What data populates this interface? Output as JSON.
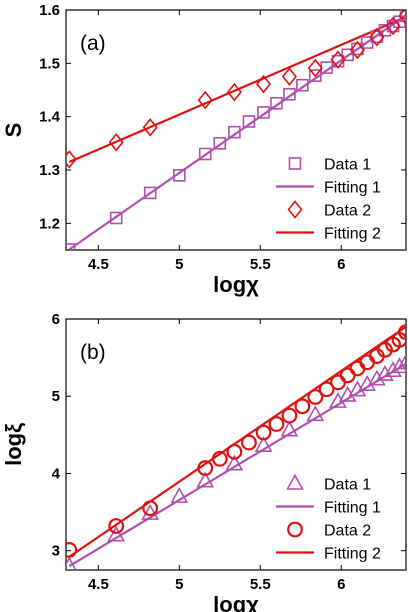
{
  "chart_data": [
    {
      "type": "scatter",
      "panel_label": "(a)",
      "xlabel": "logχ",
      "ylabel": "S",
      "xlim": [
        4.3,
        6.4
      ],
      "ylim": [
        1.15,
        1.6
      ],
      "x_ticks": [
        4.5,
        5,
        5.5,
        6
      ],
      "x_tick_labels": [
        "4.5",
        "5",
        "5.5",
        "6"
      ],
      "y_ticks": [
        1.2,
        1.3,
        1.4,
        1.5,
        1.6
      ],
      "y_tick_labels": [
        "1.2",
        "1.3",
        "1.4",
        "1.5",
        "1.6"
      ],
      "legend_position": "bottom-right",
      "series": [
        {
          "name": "Data 1",
          "kind": "marker",
          "marker": "square",
          "color": "#b04fb0",
          "x": [
            4.32,
            4.61,
            4.82,
            5.0,
            5.16,
            5.25,
            5.34,
            5.43,
            5.52,
            5.6,
            5.68,
            5.76,
            5.84,
            5.91,
            5.98,
            6.04,
            6.1,
            6.16,
            6.22,
            6.27,
            6.32,
            6.36,
            6.4
          ],
          "y": [
            1.151,
            1.21,
            1.257,
            1.29,
            1.33,
            1.35,
            1.371,
            1.391,
            1.408,
            1.425,
            1.442,
            1.459,
            1.477,
            1.492,
            1.504,
            1.516,
            1.527,
            1.539,
            1.55,
            1.562,
            1.57,
            1.578,
            1.589
          ]
        },
        {
          "name": "Fitting 1",
          "kind": "line",
          "color": "#b04fb0",
          "x": [
            4.32,
            6.4
          ],
          "y": [
            1.151,
            1.59
          ]
        },
        {
          "name": "Data 2",
          "kind": "marker",
          "marker": "diamond",
          "color": "#e01010",
          "x": [
            4.32,
            4.61,
            4.82,
            5.16,
            5.34,
            5.52,
            5.68,
            5.84,
            5.98,
            6.1,
            6.22,
            6.32,
            6.4
          ],
          "y": [
            1.32,
            1.352,
            1.38,
            1.431,
            1.446,
            1.461,
            1.475,
            1.491,
            1.507,
            1.525,
            1.549,
            1.57,
            1.589
          ]
        },
        {
          "name": "Fitting 2",
          "kind": "line",
          "color": "#e01010",
          "x": [
            4.32,
            6.4
          ],
          "y": [
            1.315,
            1.587
          ]
        }
      ]
    },
    {
      "type": "scatter",
      "panel_label": "(b)",
      "xlabel": "logχ",
      "ylabel": "logξ",
      "xlim": [
        4.3,
        6.4
      ],
      "ylim": [
        2.75,
        6.0
      ],
      "x_ticks": [
        4.5,
        5,
        5.5,
        6
      ],
      "x_tick_labels": [
        "4.5",
        "5",
        "5.5",
        "6"
      ],
      "y_ticks": [
        3,
        4,
        5,
        6
      ],
      "y_tick_labels": [
        "3",
        "4",
        "5",
        "6"
      ],
      "legend_position": "bottom-right",
      "series": [
        {
          "name": "Data 1",
          "kind": "marker",
          "marker": "triangle",
          "color": "#b04fb0",
          "x": [
            4.32,
            4.61,
            4.82,
            5.0,
            5.16,
            5.34,
            5.52,
            5.68,
            5.84,
            5.98,
            6.04,
            6.1,
            6.16,
            6.22,
            6.27,
            6.32,
            6.36,
            6.4
          ],
          "y": [
            2.8,
            3.2,
            3.48,
            3.7,
            3.9,
            4.12,
            4.36,
            4.56,
            4.76,
            4.93,
            5.01,
            5.08,
            5.15,
            5.22,
            5.28,
            5.33,
            5.38,
            5.43
          ]
        },
        {
          "name": "Fitting 1",
          "kind": "line",
          "color": "#b04fb0",
          "x": [
            4.32,
            6.4
          ],
          "y": [
            2.8,
            5.42
          ]
        },
        {
          "name": "Data 2",
          "kind": "marker",
          "marker": "circle",
          "color": "#e01010",
          "x": [
            4.32,
            4.61,
            4.82,
            5.16,
            5.25,
            5.34,
            5.43,
            5.52,
            5.6,
            5.68,
            5.76,
            5.84,
            5.91,
            5.98,
            6.04,
            6.1,
            6.16,
            6.22,
            6.27,
            6.32,
            6.36,
            6.4
          ],
          "y": [
            3.01,
            3.32,
            3.55,
            4.07,
            4.19,
            4.28,
            4.4,
            4.53,
            4.64,
            4.75,
            4.87,
            4.99,
            5.09,
            5.18,
            5.27,
            5.36,
            5.44,
            5.52,
            5.6,
            5.67,
            5.73,
            5.83
          ]
        },
        {
          "name": "Fitting 2",
          "kind": "line",
          "color": "#e01010",
          "x": [
            4.32,
            6.4
          ],
          "y": [
            2.92,
            5.9
          ]
        }
      ]
    }
  ]
}
